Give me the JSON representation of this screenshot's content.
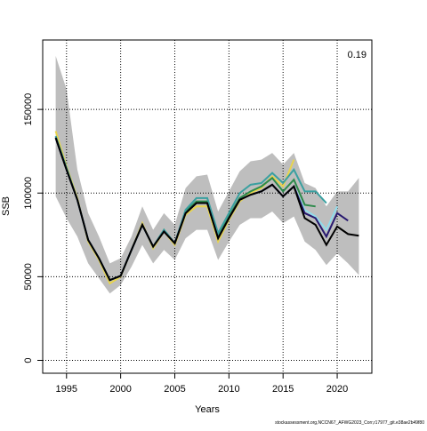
{
  "chart_data": {
    "type": "line",
    "y_label": "SSB",
    "x_label": "Years",
    "annotation": "0.19",
    "footer": "stockassessment.org,NCCN67_AFWG2023_Corr,r17977_git.e38ae2b49f80",
    "x": [
      1994,
      1995,
      1996,
      1997,
      1998,
      1999,
      2000,
      2001,
      2002,
      2003,
      2004,
      2005,
      2006,
      2007,
      2008,
      2009,
      2010,
      2011,
      2012,
      2013,
      2014,
      2015,
      2016,
      2017,
      2018,
      2019,
      2020,
      2021,
      2022
    ],
    "band": {
      "color": "#bebebe",
      "upper": [
        182000,
        162000,
        114000,
        88000,
        74000,
        58000,
        61000,
        74000,
        92000,
        78000,
        88000,
        81000,
        103000,
        110000,
        111000,
        89000,
        101000,
        113000,
        119000,
        120000,
        124000,
        117000,
        124000,
        106000,
        103000,
        92000,
        101000,
        101000,
        109000
      ],
      "lower": [
        98000,
        85000,
        74000,
        58000,
        49000,
        40000,
        45000,
        56000,
        69000,
        58000,
        66000,
        60000,
        73000,
        78000,
        78000,
        60000,
        71000,
        81000,
        85000,
        85000,
        89000,
        82000,
        86000,
        71000,
        66000,
        57000,
        64000,
        58000,
        51000
      ]
    },
    "series": [
      {
        "color": "#e8d44d",
        "values": [
          137000,
          116000,
          97000,
          71000,
          60000,
          46000,
          50000,
          66000,
          82000,
          67000,
          77000,
          69000,
          87000,
          92000,
          92000,
          71000,
          84000,
          95000,
          100000,
          103000,
          110000,
          104000,
          120000,
          null,
          null,
          null,
          null,
          null,
          null
        ]
      },
      {
        "color": "#2d8a4b",
        "values": [
          134000,
          115000,
          96000,
          72000,
          61000,
          48000,
          50500,
          66000,
          81000,
          68000,
          78000,
          70000,
          89000,
          95000,
          95000,
          74000,
          86000,
          97000,
          101000,
          104000,
          109000,
          101000,
          108000,
          93000,
          92000,
          null,
          null,
          null,
          null
        ]
      },
      {
        "color": "#3aa0a0",
        "values": [
          134000,
          115000,
          96000,
          72000,
          61000,
          48000,
          50500,
          66000,
          81000,
          68000,
          78000,
          70000,
          90000,
          97000,
          97000,
          76000,
          88000,
          100000,
          105000,
          106000,
          112000,
          106000,
          114000,
          101000,
          101000,
          94000,
          null,
          null,
          null
        ]
      },
      {
        "color": "#8fdcec",
        "values": [
          133000,
          114000,
          96000,
          72000,
          61000,
          48000,
          50500,
          66000,
          81000,
          68000,
          77000,
          70000,
          88000,
          94000,
          94000,
          73000,
          85000,
          96000,
          99000,
          101000,
          105000,
          98000,
          104000,
          90000,
          86000,
          78000,
          92000,
          null,
          null
        ]
      },
      {
        "color": "#27186f",
        "values": [
          133000,
          114000,
          96000,
          72000,
          61000,
          48000,
          50500,
          66000,
          81000,
          68000,
          77000,
          70000,
          88000,
          94000,
          94000,
          73000,
          85000,
          96000,
          99000,
          101000,
          105000,
          98000,
          104000,
          88000,
          85000,
          74000,
          88000,
          83500,
          null
        ]
      },
      {
        "color": "#000000",
        "values": [
          133000,
          114000,
          96000,
          72000,
          61000,
          48000,
          50500,
          66000,
          81000,
          68000,
          77000,
          70000,
          88000,
          94000,
          94000,
          73000,
          85000,
          96000,
          99000,
          101000,
          105000,
          98000,
          104000,
          85000,
          81000,
          69000,
          80000,
          75500,
          74500
        ]
      }
    ],
    "xlim": [
      1992.8,
      2023.2
    ],
    "ylim": [
      -7700,
      191500
    ],
    "xticks": [
      1995,
      2000,
      2005,
      2010,
      2015,
      2020
    ],
    "yticks": [
      0,
      50000,
      100000,
      150000
    ],
    "grid": true
  }
}
